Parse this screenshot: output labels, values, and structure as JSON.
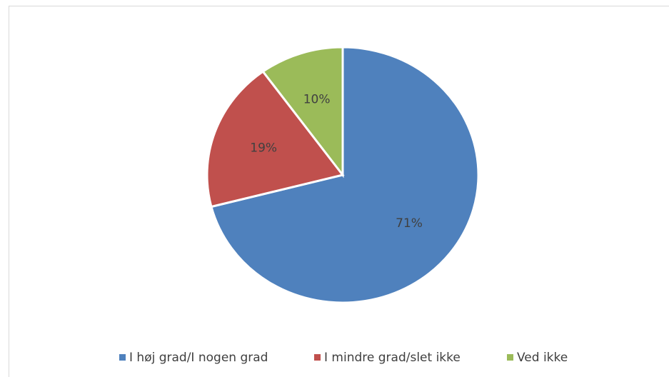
{
  "chart_data": {
    "type": "pie",
    "categories": [
      "I høj grad/I nogen grad",
      "I mindre grad/slet ikke",
      "Ved ikke"
    ],
    "values": [
      71,
      19,
      10
    ],
    "value_labels": [
      "71%",
      "19%",
      "10%"
    ],
    "colors": [
      "#4f81bd",
      "#c0504d",
      "#9bbb59"
    ],
    "legend": "bottom"
  }
}
